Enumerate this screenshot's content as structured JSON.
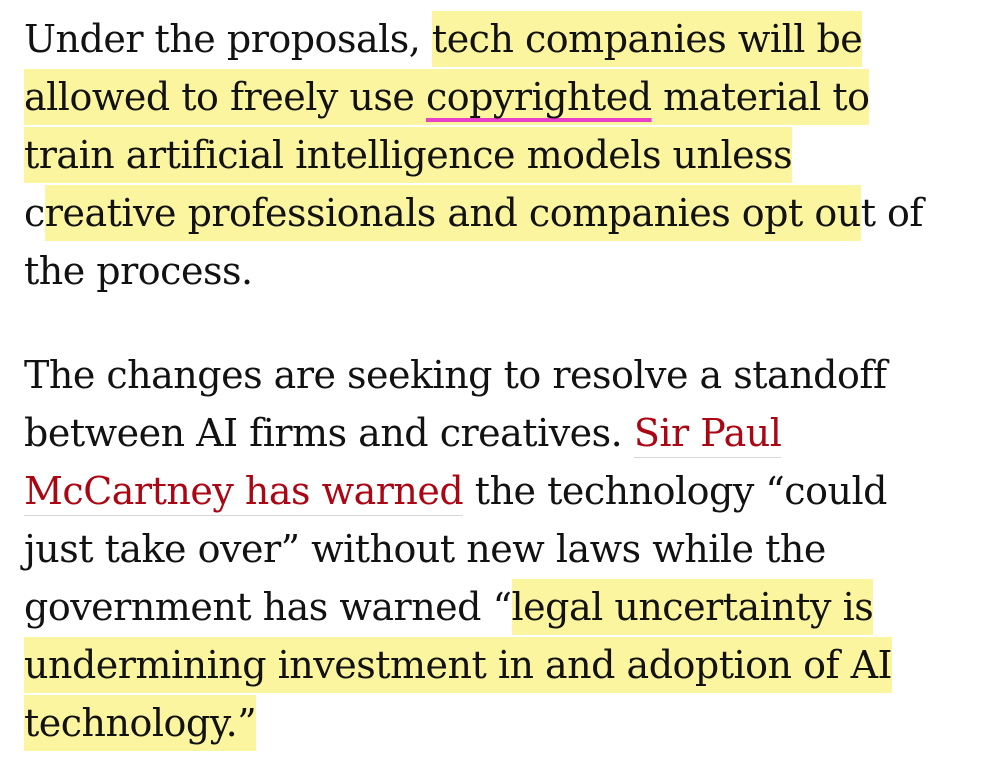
{
  "paragraph1": {
    "l1_plain": "Under the proposals, ",
    "l1_hl": "tech companies will be",
    "l2_hl_a": "allowed to freely use ",
    "l2_underlined": "copyrighted",
    "l2_hl_b": " material to",
    "l3_hl": "train artificial intelligence models unless",
    "l4_plain_a": "c",
    "l4_hl": "reative professionals and companies opt ou",
    "l4_plain_b": "t of",
    "l5_plain": "the process."
  },
  "paragraph2": {
    "l1_plain": "The changes are seeking to resolve a standoff",
    "l2_plain": "between AI firms and creatives. ",
    "l2_link": "Sir Paul",
    "l3_link": "McCartney has warned",
    "l3_plain": " the technology “could",
    "l4_plain": "just take over” without new laws while the",
    "l5_plain": "government has warned “",
    "l5_hl": "legal uncertainty is",
    "l6_hl": "undermining investment in and adoption of AI",
    "l7_hl": "technology.”"
  },
  "colors": {
    "highlight": "#fbf59f",
    "underline": "#e93ec8",
    "link": "#ab0613",
    "text": "#121212"
  }
}
